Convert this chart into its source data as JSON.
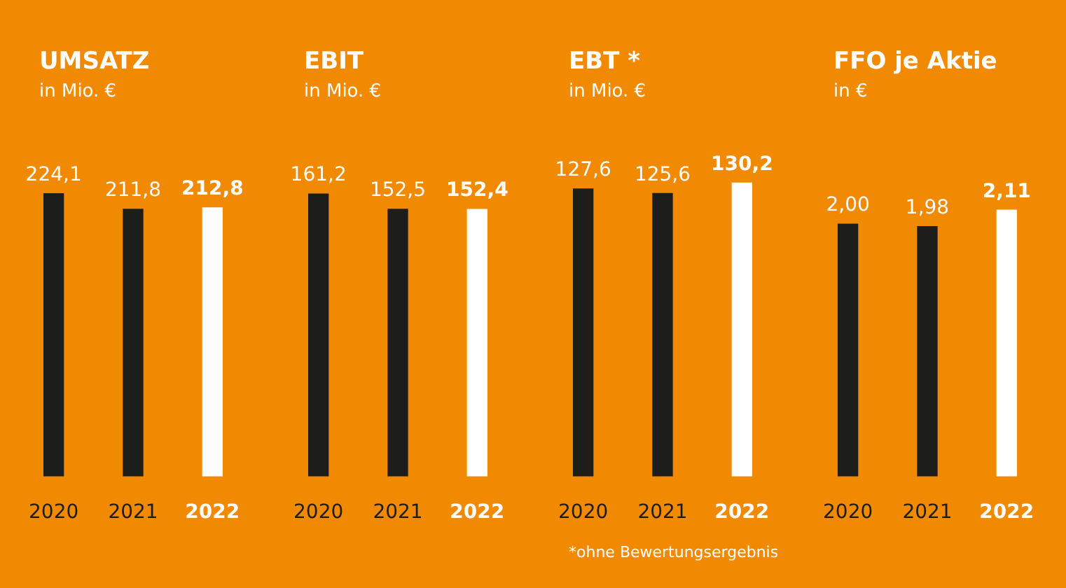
{
  "chart_data": [
    {
      "type": "bar",
      "title": "UMSATZ",
      "subtitle": "in Mio. €",
      "categories": [
        "2020",
        "2021",
        "2022"
      ],
      "values": [
        224.1,
        211.8,
        212.8
      ],
      "value_labels": [
        "224,1",
        "211,8",
        "212,8"
      ],
      "colors": [
        "#1d1d1b",
        "#1d1d1b",
        "#ffffff"
      ]
    },
    {
      "type": "bar",
      "title": "EBIT",
      "subtitle": "in Mio. €",
      "categories": [
        "2020",
        "2021",
        "2022"
      ],
      "values": [
        161.2,
        152.5,
        152.4
      ],
      "value_labels": [
        "161,2",
        "152,5",
        "152,4"
      ],
      "colors": [
        "#1d1d1b",
        "#1d1d1b",
        "#ffffff"
      ]
    },
    {
      "type": "bar",
      "title": "EBT *",
      "subtitle": "in Mio. €",
      "categories": [
        "2020",
        "2021",
        "2022"
      ],
      "values": [
        127.6,
        125.6,
        130.2
      ],
      "value_labels": [
        "127,6",
        "125,6",
        "130,2"
      ],
      "colors": [
        "#1d1d1b",
        "#1d1d1b",
        "#ffffff"
      ],
      "annotations": [
        "*ohne Bewertungsergebnis"
      ]
    },
    {
      "type": "bar",
      "title": "FFO je Aktie",
      "subtitle": "in €",
      "categories": [
        "2020",
        "2021",
        "2022"
      ],
      "values": [
        2.0,
        1.98,
        2.11
      ],
      "value_labels": [
        "2,00",
        "1,98",
        "2,11"
      ],
      "colors": [
        "#1d1d1b",
        "#1d1d1b",
        "#ffffff"
      ]
    }
  ]
}
